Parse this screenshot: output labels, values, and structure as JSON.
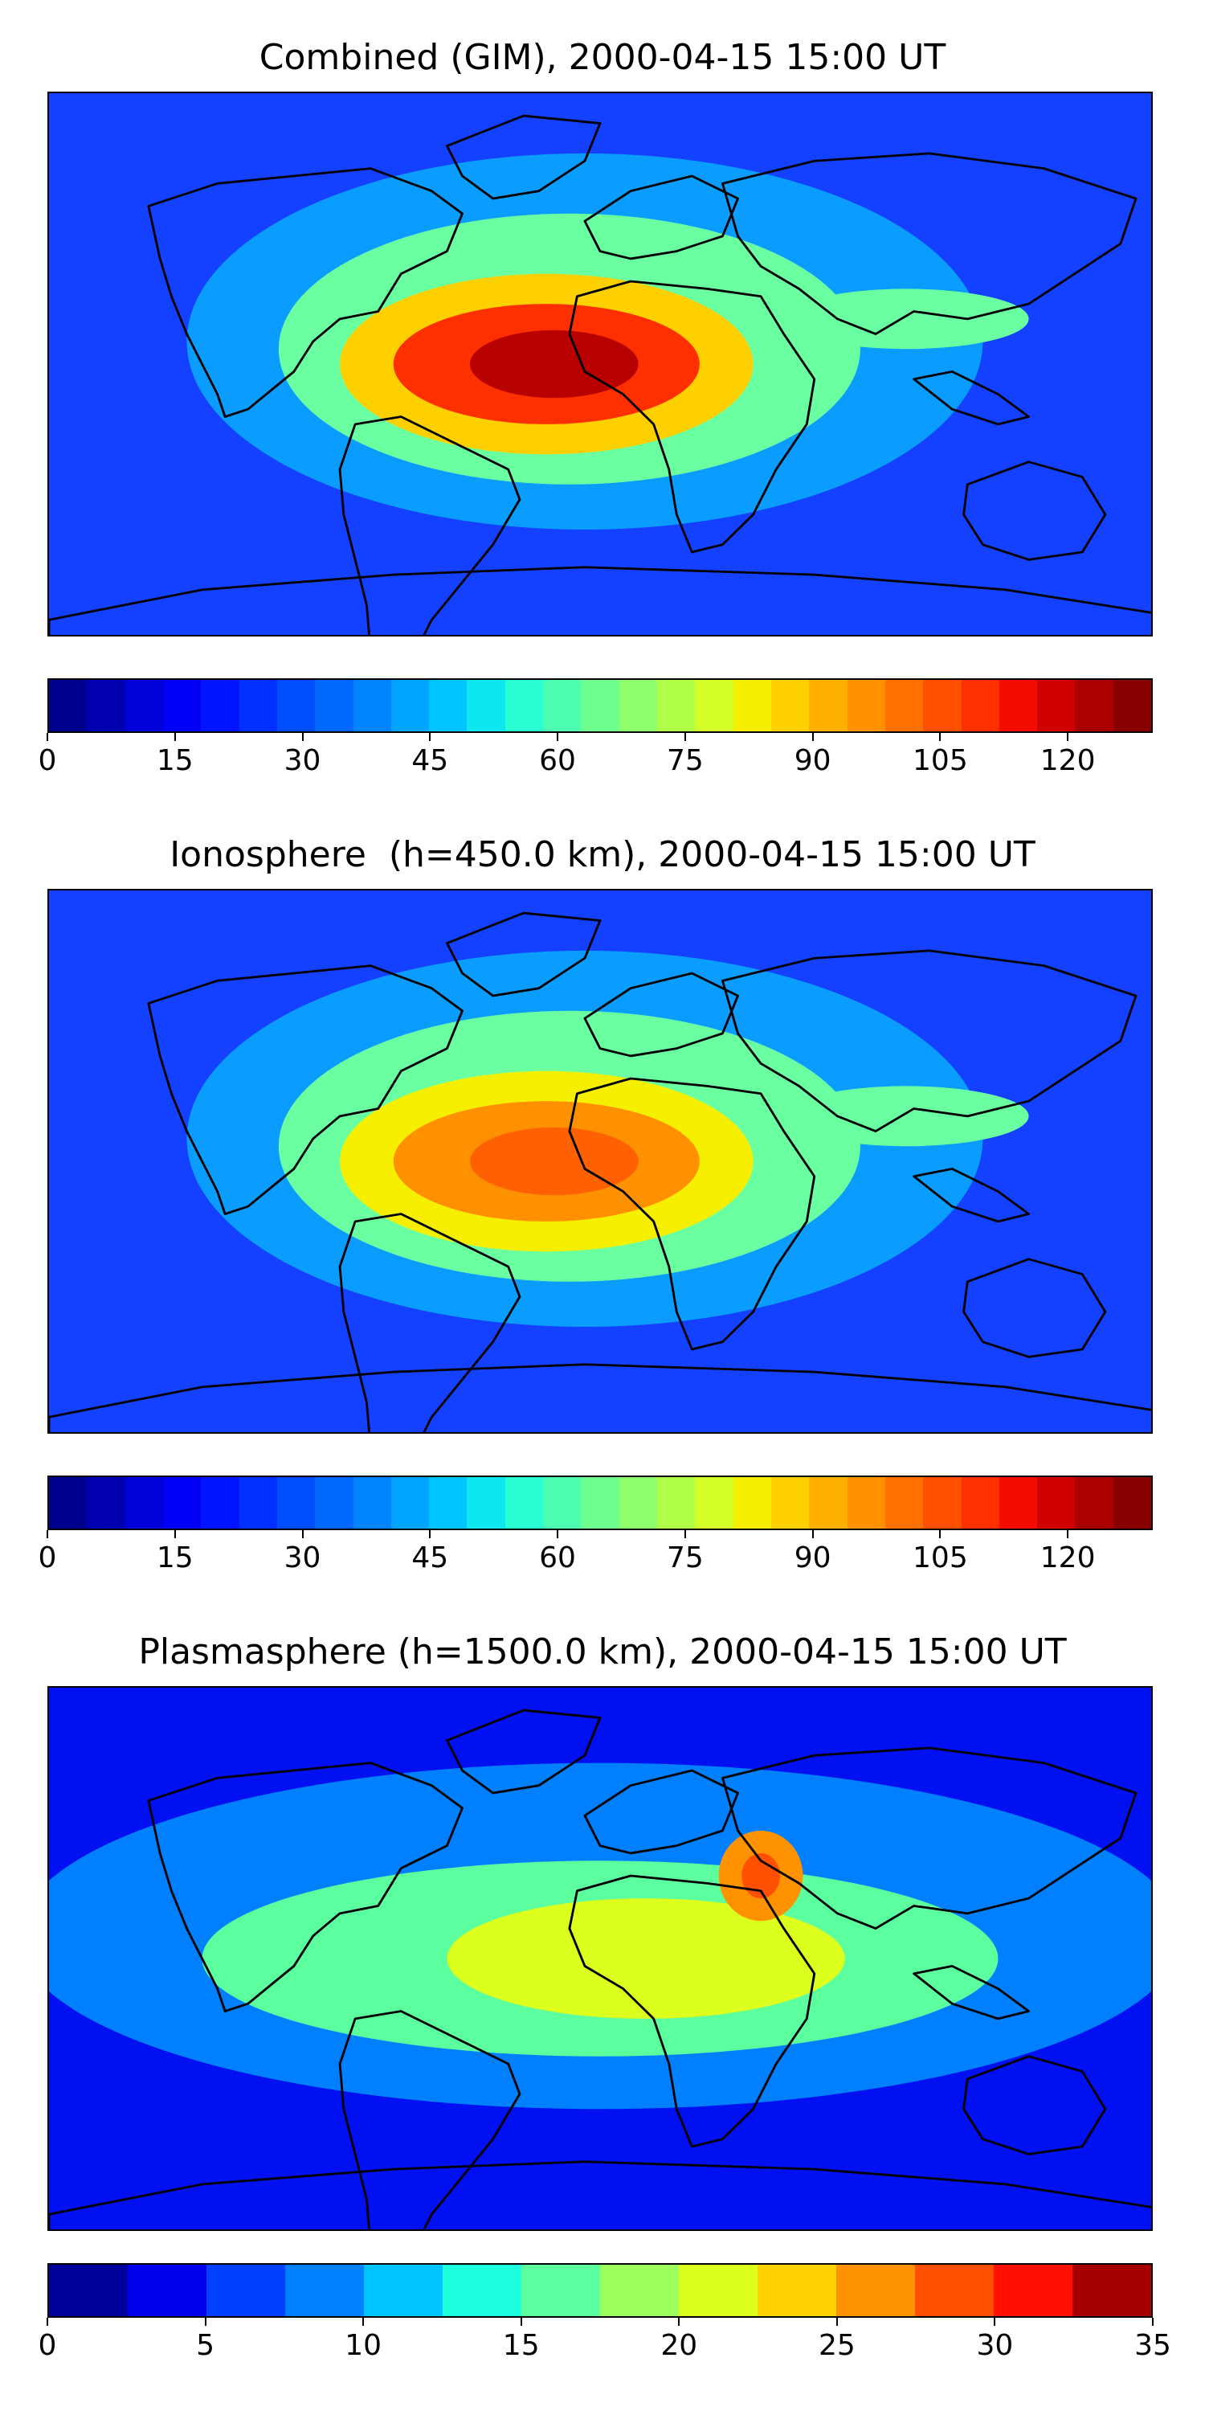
{
  "panels": [
    {
      "title": "Combined (GIM), 2000-04-15 15:00 UT",
      "colorbar": {
        "colors": [
          "#00008f",
          "#0000b0",
          "#0000d8",
          "#0000f6",
          "#0014ff",
          "#0030ff",
          "#004cff",
          "#0068ff",
          "#0084ff",
          "#00a4ff",
          "#00c4ff",
          "#0ee6f0",
          "#2affd4",
          "#4cffb0",
          "#6eff8e",
          "#90ff6c",
          "#b2ff4a",
          "#d4ff28",
          "#f6f000",
          "#ffd000",
          "#ffb000",
          "#ff9000",
          "#ff7000",
          "#ff5000",
          "#ff3000",
          "#f40c00",
          "#d00000",
          "#aa0000",
          "#880000"
        ],
        "ticks": [
          "0",
          "15",
          "30",
          "45",
          "60",
          "75",
          "90",
          "105",
          "120"
        ],
        "tick_values": [
          0,
          15,
          30,
          45,
          60,
          75,
          90,
          105,
          120
        ],
        "vmin": 0,
        "vmax": 130
      },
      "map_colors": {
        "background": "#1440ff",
        "mid": "#0a9cff",
        "high": "#6affa0",
        "peak": "#ffd000",
        "hot": "#ff3000",
        "core": "#b80000"
      }
    },
    {
      "title": "Ionosphere  (h=450.0 km), 2000-04-15 15:00 UT",
      "colorbar": {
        "colors": [
          "#00008f",
          "#0000b0",
          "#0000d8",
          "#0000f6",
          "#0014ff",
          "#0030ff",
          "#004cff",
          "#0068ff",
          "#0084ff",
          "#00a4ff",
          "#00c4ff",
          "#0ee6f0",
          "#2affd4",
          "#4cffb0",
          "#6eff8e",
          "#90ff6c",
          "#b2ff4a",
          "#d4ff28",
          "#f6f000",
          "#ffd000",
          "#ffb000",
          "#ff9000",
          "#ff7000",
          "#ff5000",
          "#ff3000",
          "#f40c00",
          "#d00000",
          "#aa0000",
          "#880000"
        ],
        "ticks": [
          "0",
          "15",
          "30",
          "45",
          "60",
          "75",
          "90",
          "105",
          "120"
        ],
        "tick_values": [
          0,
          15,
          30,
          45,
          60,
          75,
          90,
          105,
          120
        ],
        "vmin": 0,
        "vmax": 130
      },
      "map_colors": {
        "background": "#1440ff",
        "mid": "#0a9cff",
        "high": "#6affa0",
        "peak": "#f6f000",
        "hot": "#ff9000",
        "core": "#ff6000"
      }
    },
    {
      "title": "Plasmasphere (h=1500.0 km), 2000-04-15 15:00 UT",
      "colorbar": {
        "colors": [
          "#00009a",
          "#0000f0",
          "#0040ff",
          "#0080ff",
          "#00c4ff",
          "#1effe0",
          "#5cff9e",
          "#9cff5c",
          "#dcff1e",
          "#ffd200",
          "#ff9200",
          "#ff5000",
          "#ff1000",
          "#a80000"
        ],
        "ticks": [
          "0",
          "5",
          "10",
          "15",
          "20",
          "25",
          "30",
          "35"
        ],
        "tick_values": [
          0,
          5,
          10,
          15,
          20,
          25,
          30,
          35
        ],
        "vmin": 0,
        "vmax": 35
      },
      "map_colors": {
        "background": "#0010f0",
        "mid": "#0080ff",
        "high": "#5cff9e",
        "peak": "#dcff1e",
        "hot": "#ff9200",
        "core": "#ff5000"
      }
    }
  ]
}
